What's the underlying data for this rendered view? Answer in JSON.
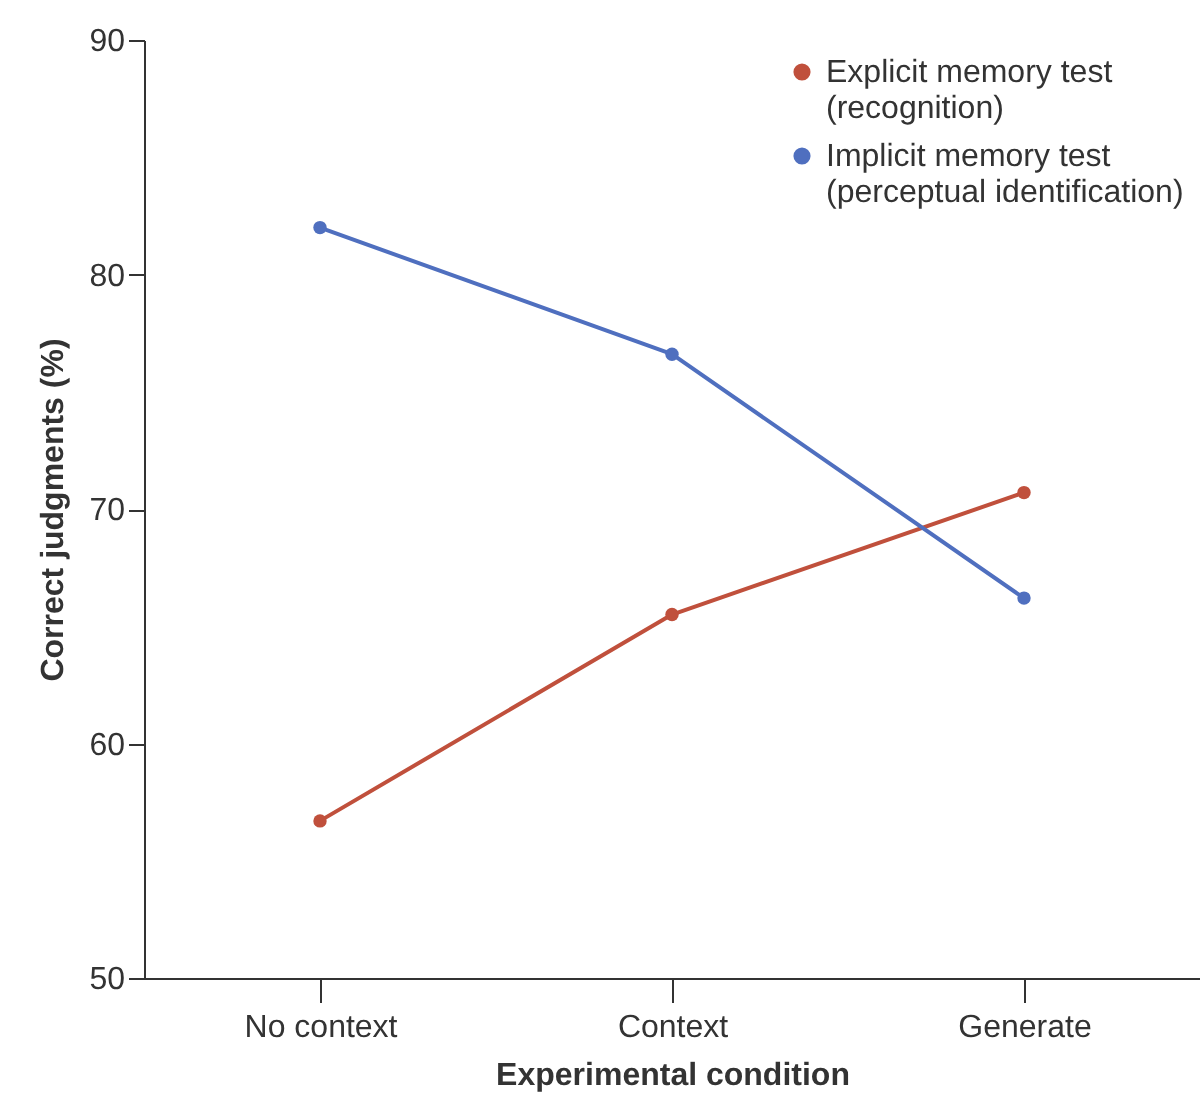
{
  "chart_data": {
    "type": "line",
    "xlabel": "Experimental condition",
    "ylabel": "Correct judgments (%)",
    "categories": [
      "No context",
      "Context",
      "Generate"
    ],
    "series": [
      {
        "name": "Explicit memory test\n(recognition)",
        "color": "#c0503c",
        "values": [
          56.7,
          65.5,
          70.7
        ]
      },
      {
        "name": "Implicit memory test\n(perceptual identification)",
        "color": "#4f6fbf",
        "values": [
          82,
          76.6,
          66.2
        ]
      }
    ],
    "ylim": [
      50,
      90
    ],
    "yticks": [
      50,
      60,
      70,
      80,
      90
    ],
    "grid": false,
    "legend": "top right",
    "marker": "circle",
    "line_style": "solid"
  }
}
